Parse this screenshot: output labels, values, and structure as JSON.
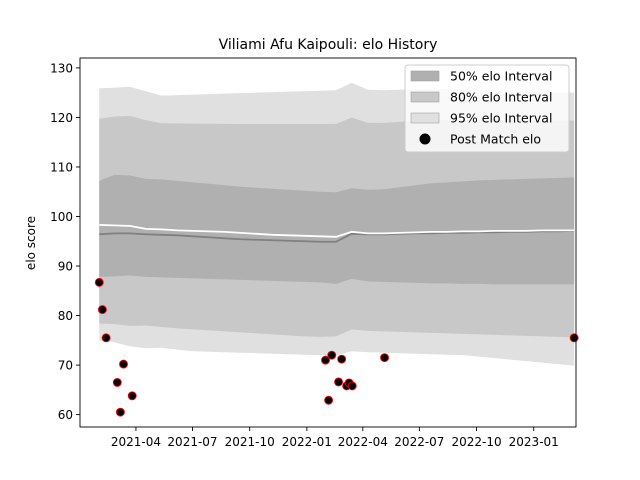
{
  "chart_data": {
    "type": "line",
    "title": "Viliami Afu Kaipouli: elo History",
    "xlabel": "",
    "ylabel": "elo score",
    "xlim": [
      "2021-01-01",
      "2023-03-10"
    ],
    "ylim": [
      57.5,
      132
    ],
    "x_ticks": [
      "2021-04",
      "2021-07",
      "2021-10",
      "2022-01",
      "2022-04",
      "2022-07",
      "2022-10",
      "2023-01"
    ],
    "y_ticks": [
      60,
      70,
      80,
      90,
      100,
      110,
      120,
      130
    ],
    "grid": false,
    "legend_position": "top-right",
    "legend": [
      {
        "label": "50% elo Interval",
        "kind": "patch",
        "color": "#b0b0b0"
      },
      {
        "label": "80% elo Interval",
        "kind": "patch",
        "color": "#c8c8c8"
      },
      {
        "label": "95% elo Interval",
        "kind": "patch",
        "color": "#e0e0e0"
      },
      {
        "label": "Post Match elo",
        "kind": "marker",
        "color": "#000000",
        "edge": "#ff0000"
      }
    ],
    "x": [
      "2021-02-01",
      "2021-02-25",
      "2021-03-22",
      "2021-04-17",
      "2021-05-12",
      "2021-06-07",
      "2021-07-02",
      "2021-07-28",
      "2021-08-22",
      "2021-09-17",
      "2021-10-12",
      "2021-11-07",
      "2021-12-02",
      "2021-12-28",
      "2022-01-22",
      "2022-02-17",
      "2022-03-14",
      "2022-04-09",
      "2022-05-05",
      "2022-05-30",
      "2022-06-25",
      "2022-07-20",
      "2022-08-15",
      "2022-09-09",
      "2022-10-05",
      "2022-10-30",
      "2022-11-25",
      "2022-12-20",
      "2023-01-15",
      "2023-02-09",
      "2023-03-07"
    ],
    "series": [
      {
        "name": "95% elo Interval",
        "kind": "band",
        "color": "#e0e0e0",
        "lower": [
          75.0,
          74.6,
          73.8,
          73.4,
          73.5,
          73.1,
          72.8,
          72.7,
          72.6,
          72.5,
          72.4,
          72.3,
          72.2,
          72.1,
          72.0,
          71.9,
          72.8,
          72.6,
          72.5,
          72.4,
          72.3,
          72.2,
          72.1,
          72.0,
          71.7,
          71.4,
          71.1,
          70.8,
          70.5,
          70.2,
          69.9
        ],
        "upper": [
          125.9,
          126.0,
          126.2,
          125.3,
          124.4,
          124.5,
          124.6,
          124.7,
          124.8,
          124.9,
          125.0,
          125.1,
          125.2,
          125.3,
          125.4,
          125.5,
          127.0,
          125.6,
          125.5,
          125.6,
          125.7,
          125.8,
          125.7,
          125.6,
          125.5,
          125.4,
          125.3,
          125.2,
          125.1,
          125.0,
          125.0
        ]
      },
      {
        "name": "80% elo Interval",
        "kind": "band",
        "color": "#c8c8c8",
        "lower": [
          78.4,
          78.3,
          77.9,
          78.0,
          77.7,
          77.4,
          77.2,
          77.0,
          76.8,
          76.6,
          76.4,
          76.2,
          76.0,
          75.8,
          75.7,
          75.8,
          77.2,
          76.9,
          76.8,
          76.7,
          76.6,
          76.5,
          76.4,
          76.3,
          76.2,
          76.1,
          76.0,
          75.9,
          75.8,
          75.7,
          75.6
        ]
      },
      {
        "name": "50% elo Interval",
        "kind": "band",
        "color": "#b0b0b0",
        "lower": [
          87.8,
          87.9,
          88.1,
          87.8,
          87.7,
          87.6,
          87.5,
          87.4,
          87.3,
          87.2,
          87.1,
          87.0,
          86.9,
          86.8,
          86.7,
          86.4,
          87.4,
          86.9,
          86.8,
          86.7,
          86.6,
          86.5,
          86.5,
          86.4,
          86.4,
          86.3,
          86.3,
          86.3,
          86.3,
          86.3,
          86.3
        ],
        "upper": [
          107.2,
          108.4,
          108.3,
          107.6,
          107.5,
          107.2,
          106.9,
          106.6,
          106.3,
          106.0,
          105.8,
          105.6,
          105.4,
          105.2,
          105.0,
          104.9,
          105.7,
          105.4,
          105.5,
          105.9,
          106.3,
          106.7,
          106.9,
          107.1,
          107.3,
          107.4,
          107.5,
          107.6,
          107.7,
          107.8,
          107.9
        ]
      },
      {
        "name": "mean",
        "kind": "line",
        "color": "#ffffff",
        "values": [
          98.3,
          98.2,
          98.1,
          97.5,
          97.4,
          97.2,
          97.1,
          97.0,
          96.9,
          96.7,
          96.5,
          96.3,
          96.2,
          96.1,
          96.0,
          95.9,
          96.9,
          96.6,
          96.6,
          96.7,
          96.8,
          96.9,
          96.9,
          97.0,
          97.0,
          97.1,
          97.1,
          97.1,
          97.2,
          97.2,
          97.2
        ]
      },
      {
        "name": "median",
        "kind": "line",
        "color": "#808080",
        "values": [
          96.4,
          96.6,
          96.6,
          96.4,
          96.3,
          96.2,
          96.0,
          95.8,
          95.6,
          95.4,
          95.3,
          95.2,
          95.1,
          95.0,
          94.9,
          94.9,
          96.5,
          96.4,
          96.4,
          96.5,
          96.6,
          96.6,
          96.7,
          96.7,
          96.8,
          96.8,
          96.9,
          96.9,
          97.0,
          97.0,
          97.1
        ]
      },
      {
        "name": "Post Match elo",
        "kind": "scatter",
        "color": "#000000",
        "edge": "#ff0000",
        "points": [
          {
            "x": "2021-02-01",
            "y": 86.7
          },
          {
            "x": "2021-02-06",
            "y": 81.2
          },
          {
            "x": "2021-02-12",
            "y": 75.5
          },
          {
            "x": "2021-03-02",
            "y": 66.5
          },
          {
            "x": "2021-03-07",
            "y": 60.5
          },
          {
            "x": "2021-03-12",
            "y": 70.2
          },
          {
            "x": "2021-03-26",
            "y": 63.8
          },
          {
            "x": "2022-01-31",
            "y": 71.0
          },
          {
            "x": "2022-02-05",
            "y": 62.9
          },
          {
            "x": "2022-02-10",
            "y": 72.0
          },
          {
            "x": "2022-02-21",
            "y": 66.6
          },
          {
            "x": "2022-02-26",
            "y": 71.2
          },
          {
            "x": "2022-03-06",
            "y": 65.8
          },
          {
            "x": "2022-03-10",
            "y": 66.4
          },
          {
            "x": "2022-03-15",
            "y": 65.8
          },
          {
            "x": "2022-05-06",
            "y": 71.5
          },
          {
            "x": "2023-03-07",
            "y": 75.5
          }
        ]
      }
    ]
  }
}
